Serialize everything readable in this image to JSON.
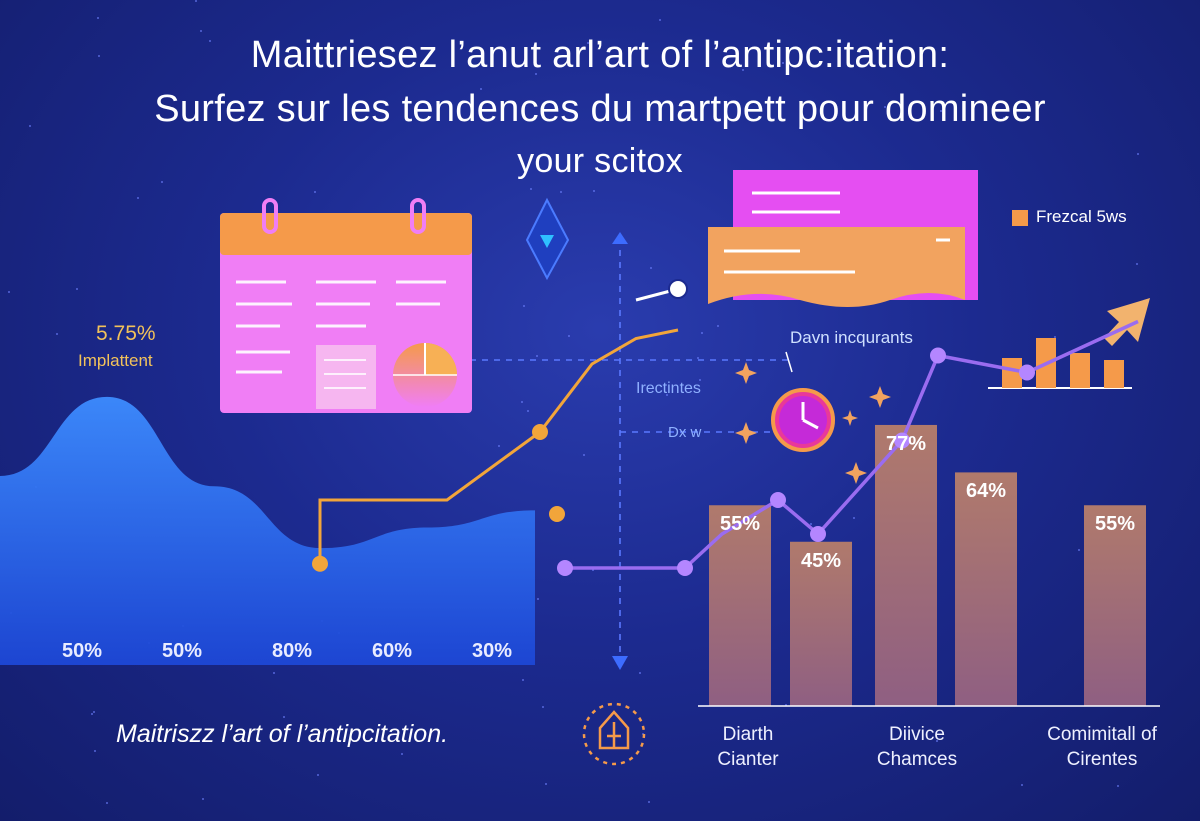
{
  "header": {
    "line1": "Maittriesez l’anut arl’art of l’antipc:itation:",
    "line2": "Surfez sur les tendences du martpett pour domineer",
    "line3": "your scitox"
  },
  "left_stat": {
    "value": "5.75%",
    "label": "Implattent"
  },
  "annotations": {
    "legend": "Frezcal 5ws",
    "callout": "Davn incqurants",
    "ireclines": "Irectintes",
    "dx": "Dx w"
  },
  "footer_caption": "Maitriszz l’art of l’antipcitation.",
  "colors": {
    "background": "#1c2a8f",
    "area_fill": "#2a6ef0",
    "bar_fill": "#a46f77",
    "orange_line": "#f2a53a",
    "purple_line": "#9a6cf0",
    "calendar_pink": "#f07ef5",
    "calendar_orange": "#f59a4a",
    "note_magenta": "#e54ef2"
  },
  "icons": [
    "calendar-icon",
    "pie-icon",
    "clock-icon",
    "diamond-icon",
    "arrow-icon",
    "gear-icon",
    "sparkle-icon"
  ],
  "chart_data": [
    {
      "type": "area",
      "x_labels": [
        "50%",
        "50%",
        "80%",
        "60%",
        "30%"
      ],
      "values": [
        55,
        78,
        52,
        34,
        40,
        45
      ]
    },
    {
      "type": "bar",
      "groups": [
        {
          "category_lines": [
            "Diarth",
            "Cianter"
          ],
          "bars": [
            {
              "label": "55%",
              "value": 55
            },
            {
              "label": "45%",
              "value": 45
            }
          ]
        },
        {
          "category_lines": [
            "Diivice",
            "Chamces"
          ],
          "bars": [
            {
              "label": "77%",
              "value": 77
            },
            {
              "label": "64%",
              "value": 64
            }
          ]
        },
        {
          "category_lines": [
            "Comimitall of",
            "Cirentes"
          ],
          "bars": [
            {
              "label": "55%",
              "value": 55
            }
          ]
        }
      ]
    },
    {
      "type": "line",
      "series": [
        {
          "color": "orange",
          "values": [
            5,
            5,
            20,
            20,
            36,
            52,
            58,
            60
          ]
        },
        {
          "color": "purple",
          "values": [
            4,
            4,
            4,
            12,
            20,
            12,
            34,
            54,
            50,
            62
          ]
        }
      ]
    },
    {
      "type": "bar",
      "values": [
        30,
        50,
        35,
        28
      ]
    }
  ]
}
